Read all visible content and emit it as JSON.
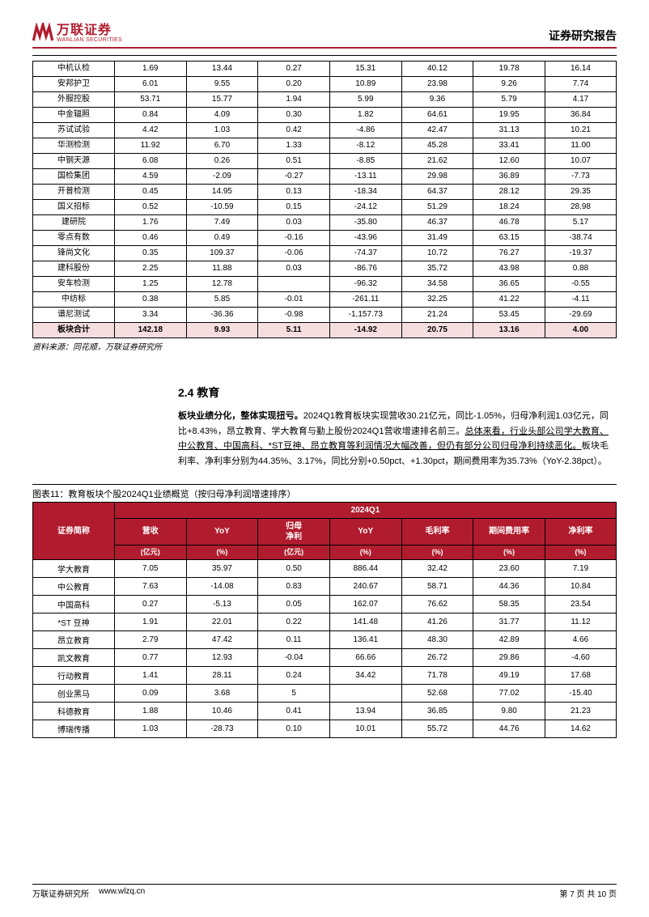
{
  "header": {
    "logo_cn": "万联证券",
    "logo_en": "WANLIAN SECURITIES",
    "report_title": "证券研究报告"
  },
  "table1": {
    "rows": [
      [
        "中机认检",
        "1.69",
        "13.44",
        "0.27",
        "15.31",
        "40.12",
        "19.78",
        "16.14"
      ],
      [
        "安邦护卫",
        "6.01",
        "9.55",
        "0.20",
        "10.89",
        "23.98",
        "9.26",
        "7.74"
      ],
      [
        "外服控股",
        "53.71",
        "15.77",
        "1.94",
        "5.99",
        "9.36",
        "5.79",
        "4.17"
      ],
      [
        "中金辐照",
        "0.84",
        "4.09",
        "0.30",
        "1.82",
        "64.61",
        "19.95",
        "36.84"
      ],
      [
        "苏试试验",
        "4.42",
        "1.03",
        "0.42",
        "-4.86",
        "42.47",
        "31.13",
        "10.21"
      ],
      [
        "华测检测",
        "11.92",
        "6.70",
        "1.33",
        "-8.12",
        "45.28",
        "33.41",
        "11.00"
      ],
      [
        "中钢天源",
        "6.08",
        "0.26",
        "0.51",
        "-8.85",
        "21.62",
        "12.60",
        "10.07"
      ],
      [
        "国检集团",
        "4.59",
        "-2.09",
        "-0.27",
        "-13.11",
        "29.98",
        "36.89",
        "-7.73"
      ],
      [
        "开普检测",
        "0.45",
        "14.95",
        "0.13",
        "-18.34",
        "64.37",
        "28.12",
        "29.35"
      ],
      [
        "国义招标",
        "0.52",
        "-10.59",
        "0.15",
        "-24.12",
        "51.29",
        "18.24",
        "28.98"
      ],
      [
        "建研院",
        "1.76",
        "7.49",
        "0.03",
        "-35.80",
        "46.37",
        "46.78",
        "5.17"
      ],
      [
        "零点有数",
        "0.46",
        "0.49",
        "-0.16",
        "-43.96",
        "31.49",
        "63.15",
        "-38.74"
      ],
      [
        "锋尚文化",
        "0.35",
        "109.37",
        "-0.06",
        "-74.37",
        "10.72",
        "76.27",
        "-19.37"
      ],
      [
        "建科股份",
        "2.25",
        "11.88",
        "0.03",
        "-86.76",
        "35.72",
        "43.98",
        "0.88"
      ],
      [
        "安车检测",
        "1.25",
        "12.78",
        "",
        "-96.32",
        "34.58",
        "36.65",
        "-0.55"
      ],
      [
        "中纺标",
        "0.38",
        "5.85",
        "-0.01",
        "-261.11",
        "32.25",
        "41.22",
        "-4.11"
      ],
      [
        "谱尼测试",
        "3.34",
        "-36.36",
        "-0.98",
        "-1,157.73",
        "21.24",
        "53.45",
        "-29.69"
      ]
    ],
    "summary": [
      "板块合计",
      "142.18",
      "9.93",
      "5.11",
      "-14.92",
      "20.75",
      "13.16",
      "4.00"
    ],
    "source": "资料来源：同花顺，万联证券研究所"
  },
  "section": {
    "heading": "2.4 教育",
    "p_bold_lead": "板块业绩分化，整体实现扭亏。",
    "p_part1": "2024Q1教育板块实现营收30.21亿元，同比-1.05%，归母净利润1.03亿元，同比+8.43%，昂立教育、学大教育与勤上股份2024Q1营收增速排名前三。",
    "p_under": "总体来看，行业头部公司学大教育、中公教育、中国高科、*ST豆神、昂立教育等利润情况大幅改善，但仍有部分公司归母净利持续恶化。",
    "p_part2": "板块毛利率、净利率分别为44.35%、3.17%，同比分别+0.50pct、+1.30pct，期间费用率为35.73%（YoY-2.38pct）。"
  },
  "chart11": {
    "caption": "图表11：教育板块个股2024Q1业绩概览（按归母净利润增速排序）",
    "group_header": "2024Q1",
    "name_header": "证券简称",
    "metrics": [
      "营收",
      "YoY",
      "归母\n净利",
      "YoY",
      "毛利率",
      "期间费用率",
      "净利率"
    ],
    "units": [
      "(亿元)",
      "(%)",
      "(亿元)",
      "(%)",
      "(%)",
      "(%)",
      "(%)"
    ],
    "rows": [
      [
        "学大教育",
        "7.05",
        "35.97",
        "0.50",
        "886.44",
        "32.42",
        "23.60",
        "7.19"
      ],
      [
        "中公教育",
        "7.63",
        "-14.08",
        "0.83",
        "240.67",
        "58.71",
        "44.36",
        "10.84"
      ],
      [
        "中国高科",
        "0.27",
        "-5.13",
        "0.05",
        "162.07",
        "76.62",
        "58.35",
        "23.54"
      ],
      [
        "*ST 豆神",
        "1.91",
        "22.01",
        "0.22",
        "141.48",
        "41.26",
        "31.77",
        "11.12"
      ],
      [
        "昂立教育",
        "2.79",
        "47.42",
        "0.11",
        "136.41",
        "48.30",
        "42.89",
        "4.66"
      ],
      [
        "凯文教育",
        "0.77",
        "12.93",
        "-0.04",
        "66.66",
        "26.72",
        "29.86",
        "-4.60"
      ],
      [
        "行动教育",
        "1.41",
        "28.11",
        "0.24",
        "34.42",
        "71.78",
        "49.19",
        "17.68"
      ],
      [
        "创业黑马",
        "0.09",
        "3.68",
        "5",
        "",
        "52.68",
        "77.02",
        "-15.40"
      ],
      [
        "科德教育",
        "1.88",
        "10.46",
        "0.41",
        "13.94",
        "36.85",
        "9.80",
        "21.23"
      ],
      [
        "博瑞传播",
        "1.03",
        "-28.73",
        "0.10",
        "10.01",
        "55.72",
        "44.76",
        "14.62"
      ]
    ]
  },
  "footer": {
    "org": "万联证券研究所",
    "url": "www.wlzq.cn",
    "page": "第 7 页 共 10 页"
  }
}
